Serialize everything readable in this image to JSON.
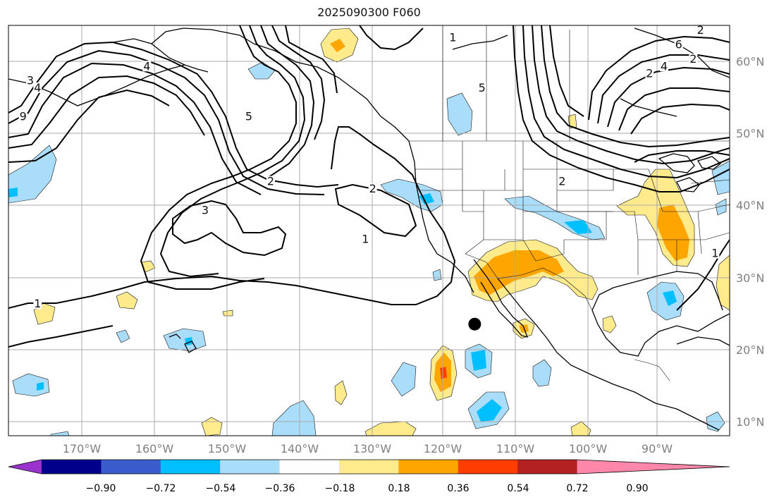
{
  "title": "2025090300 F060",
  "map": {
    "type": "geographic-map",
    "projection": "equirectangular",
    "lon_range": [
      180,
      81
    ],
    "lat_range": [
      8,
      65
    ],
    "longitude_ticks": [
      "170°W",
      "160°W",
      "150°W",
      "140°W",
      "130°W",
      "120°W",
      "110°W",
      "100°W",
      "90°W"
    ],
    "latitude_ticks": [
      "60°N",
      "50°N",
      "40°N",
      "30°N",
      "20°N",
      "10°N"
    ],
    "contour_labels": [
      {
        "text": "1",
        "lon": -119,
        "lat": 63
      },
      {
        "text": "4",
        "lon": -161,
        "lat": 59
      },
      {
        "text": "3",
        "lon": -177,
        "lat": 57
      },
      {
        "text": "4",
        "lon": -176,
        "lat": 56
      },
      {
        "text": "9",
        "lon": -178,
        "lat": 52
      },
      {
        "text": "5",
        "lon": -147,
        "lat": 52
      },
      {
        "text": "2",
        "lon": -144,
        "lat": 43
      },
      {
        "text": "2",
        "lon": -130,
        "lat": 42
      },
      {
        "text": "3",
        "lon": -153,
        "lat": 39
      },
      {
        "text": "1",
        "lon": -131,
        "lat": 35
      },
      {
        "text": "1",
        "lon": -176,
        "lat": 26
      },
      {
        "text": "5",
        "lon": -115,
        "lat": 56
      },
      {
        "text": "4",
        "lon": -90,
        "lat": 59
      },
      {
        "text": "6",
        "lon": -88,
        "lat": 62
      },
      {
        "text": "2",
        "lon": -92,
        "lat": 58
      },
      {
        "text": "2",
        "lon": -86,
        "lat": 60
      },
      {
        "text": "2",
        "lon": -85,
        "lat": 64
      },
      {
        "text": "2",
        "lon": -104,
        "lat": 43
      },
      {
        "text": "1",
        "lon": -83,
        "lat": 33
      }
    ],
    "marker": {
      "name": "station-dot",
      "lon": -116,
      "lat": 23.5
    }
  },
  "colorbar": {
    "ticks": [
      "−0.90",
      "−0.72",
      "−0.54",
      "−0.36",
      "−0.18",
      "0.18",
      "0.36",
      "0.54",
      "0.72",
      "0.90"
    ],
    "colors": [
      "#9933cc",
      "#00008b",
      "#3a5ccc",
      "#00bfff",
      "#aaddfa",
      "#ffffff",
      "#ffea8c",
      "#ffa500",
      "#ff3d00",
      "#b22222",
      "#ff88aa"
    ]
  }
}
